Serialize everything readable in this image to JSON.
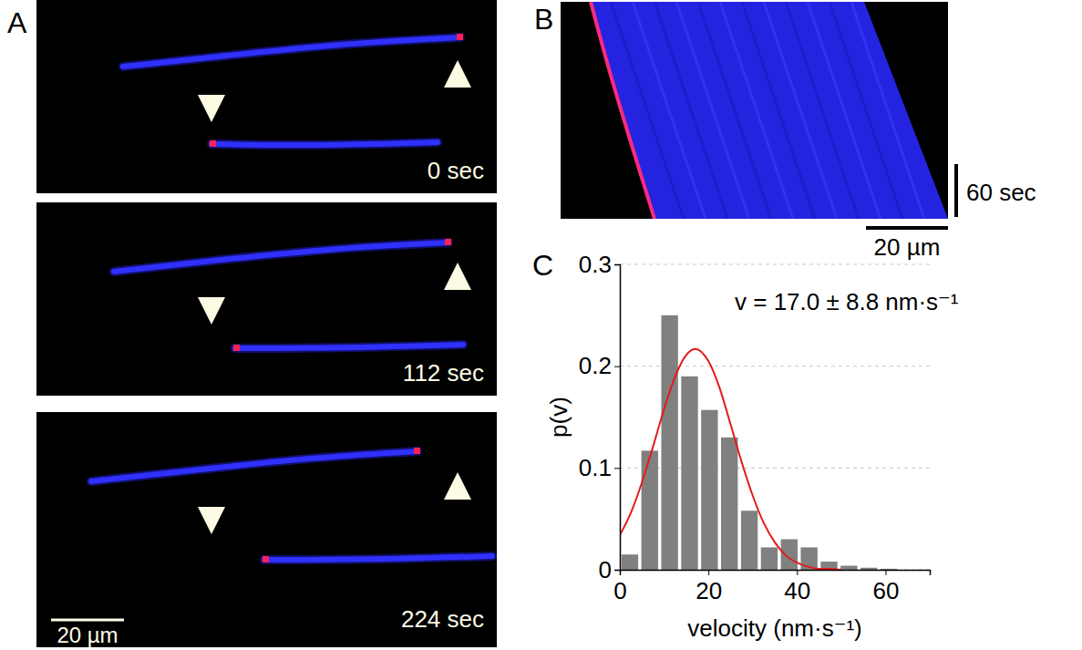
{
  "panel_a": {
    "letter": "A",
    "frames": [
      "0 sec",
      "112 sec",
      "224 sec"
    ],
    "scale_bar": "20 µm"
  },
  "panel_b": {
    "letter": "B",
    "time_bar": "60 sec",
    "scale_bar": "20 µm"
  },
  "chart_data": {
    "letter": "C",
    "type": "histogram",
    "xlabel": "velocity (nm·s⁻¹)",
    "ylabel": "p(v)",
    "annotation": "v = 17.0 ± 8.8 nm·s⁻¹",
    "bins": [
      0,
      4.5,
      9,
      13.5,
      18,
      22.5,
      27,
      31.5,
      36,
      40.5,
      45,
      49.5,
      54,
      58.5,
      63
    ],
    "values": [
      0.015,
      0.117,
      0.25,
      0.19,
      0.157,
      0.13,
      0.058,
      0.022,
      0.03,
      0.022,
      0.008,
      0.004,
      0.002,
      0.001
    ],
    "color": "#808080",
    "xlim": [
      0,
      70
    ],
    "xticks": [
      0,
      20,
      40,
      60
    ],
    "ylim": [
      0,
      0.3
    ],
    "yticks": [
      0,
      0.1,
      0.2,
      0.3
    ],
    "grid": true,
    "fit": {
      "type": "line",
      "color": "#e41a1c",
      "x": [
        0,
        2.5,
        5,
        7.5,
        10,
        12.5,
        15,
        17,
        20,
        22.5,
        25,
        27.5,
        30,
        32.5,
        35,
        37.5,
        40,
        42.5,
        45,
        47.5,
        50
      ],
      "values": [
        0.034,
        0.056,
        0.086,
        0.121,
        0.158,
        0.19,
        0.211,
        0.217,
        0.205,
        0.179,
        0.143,
        0.106,
        0.073,
        0.046,
        0.027,
        0.014,
        0.007,
        0.003,
        0.001,
        0.001,
        0
      ]
    }
  }
}
